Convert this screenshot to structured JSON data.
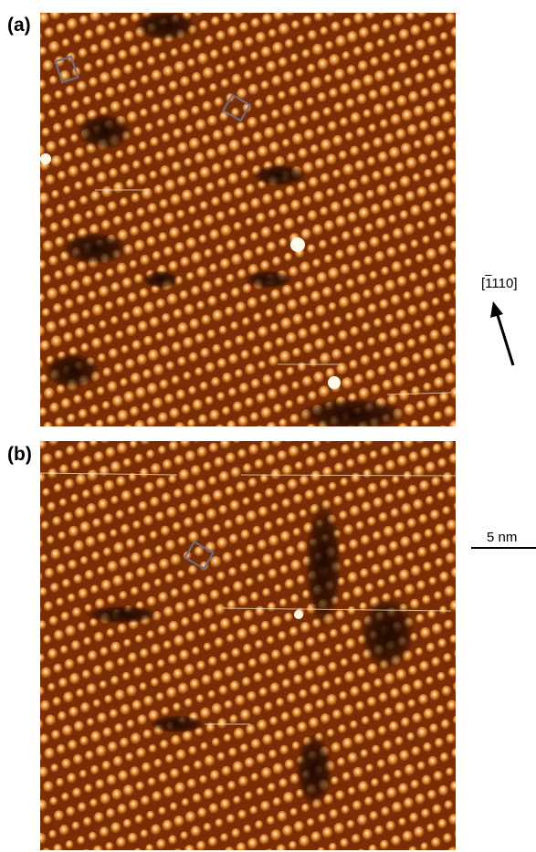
{
  "panels": [
    {
      "label": "(a)"
    },
    {
      "label": "(b)"
    }
  ],
  "direction": {
    "open": "[",
    "bar_part": "1",
    "rest": "110]"
  },
  "scale_bar": {
    "label": "5 nm"
  },
  "colors": {
    "substrate_dark": "#7a2e05",
    "atom_mid": "#e8923a",
    "atom_bright": "#fff0c8",
    "defect_dark": "#1a0600",
    "unit_cell_outline": "#6f6f8a"
  }
}
